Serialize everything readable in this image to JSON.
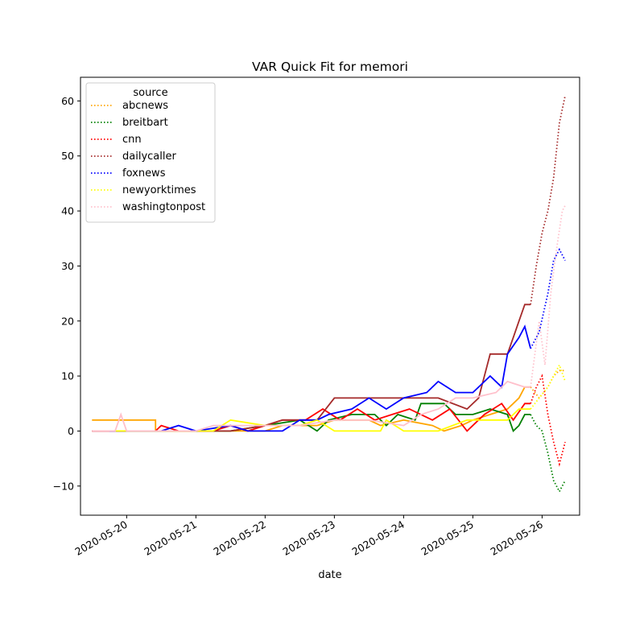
{
  "chart_data": {
    "type": "line",
    "title": "VAR Quick Fit for memori",
    "xlabel": "date",
    "ylabel": "",
    "x_ticks": [
      "2020-05-20",
      "2020-05-21",
      "2020-05-22",
      "2020-05-23",
      "2020-05-24",
      "2020-05-25",
      "2020-05-26"
    ],
    "y_ticks": [
      -10,
      0,
      10,
      20,
      30,
      40,
      50,
      60
    ],
    "xlim": [
      "2020-05-19 08:00",
      "2020-05-26 13:00"
    ],
    "ylim": [
      -15.3,
      64.3
    ],
    "grid": false,
    "legend": {
      "title": "source",
      "placement": "top-left"
    },
    "fit_start": "2020-05-25 20:00",
    "series": [
      {
        "name": "abcnews",
        "color": "#ffa500",
        "observed": [
          [
            "2020-05-19 12:00",
            2
          ],
          [
            "2020-05-20 10:00",
            2
          ],
          [
            "2020-05-20 10:00",
            0
          ],
          [
            "2020-05-22 00:00",
            0
          ],
          [
            "2020-05-22 06:00",
            1
          ],
          [
            "2020-05-22 18:00",
            1
          ],
          [
            "2020-05-23 00:00",
            2
          ],
          [
            "2020-05-23 12:00",
            2
          ],
          [
            "2020-05-23 16:00",
            1
          ],
          [
            "2020-05-24 00:00",
            2
          ],
          [
            "2020-05-24 10:00",
            1
          ],
          [
            "2020-05-24 14:00",
            0
          ],
          [
            "2020-05-24 20:00",
            1
          ],
          [
            "2020-05-25 00:00",
            2
          ],
          [
            "2020-05-25 06:00",
            3
          ],
          [
            "2020-05-25 12:00",
            4
          ],
          [
            "2020-05-25 16:00",
            6
          ],
          [
            "2020-05-25 18:00",
            8
          ],
          [
            "2020-05-25 20:00",
            8
          ]
        ],
        "forecast": [
          [
            "2020-05-25 20:00",
            8
          ],
          [
            "2020-05-25 23:00",
            6
          ],
          [
            "2020-05-26 02:00",
            8
          ],
          [
            "2020-05-26 04:00",
            10
          ],
          [
            "2020-05-26 06:00",
            11
          ],
          [
            "2020-05-26 08:00",
            11
          ]
        ]
      },
      {
        "name": "breitbart",
        "color": "#008000",
        "observed": [
          [
            "2020-05-19 20:00",
            0
          ],
          [
            "2020-05-21 12:00",
            0
          ],
          [
            "2020-05-22 12:00",
            2
          ],
          [
            "2020-05-22 18:00",
            0
          ],
          [
            "2020-05-22 22:00",
            2
          ],
          [
            "2020-05-23 06:00",
            3
          ],
          [
            "2020-05-23 14:00",
            3
          ],
          [
            "2020-05-23 18:00",
            1
          ],
          [
            "2020-05-23 22:00",
            3
          ],
          [
            "2020-05-24 04:00",
            2
          ],
          [
            "2020-05-24 06:00",
            5
          ],
          [
            "2020-05-24 14:00",
            5
          ],
          [
            "2020-05-24 18:00",
            3
          ],
          [
            "2020-05-25 00:00",
            3
          ],
          [
            "2020-05-25 06:00",
            4
          ],
          [
            "2020-05-25 12:00",
            3
          ],
          [
            "2020-05-25 14:00",
            0
          ],
          [
            "2020-05-25 16:00",
            1
          ],
          [
            "2020-05-25 18:00",
            3
          ],
          [
            "2020-05-25 20:00",
            3
          ]
        ],
        "forecast": [
          [
            "2020-05-25 20:00",
            3
          ],
          [
            "2020-05-25 22:00",
            1
          ],
          [
            "2020-05-26 00:00",
            0
          ],
          [
            "2020-05-26 02:00",
            -4
          ],
          [
            "2020-05-26 04:00",
            -9
          ],
          [
            "2020-05-26 06:00",
            -11
          ],
          [
            "2020-05-26 08:00",
            -9
          ]
        ]
      },
      {
        "name": "cnn",
        "color": "#ff0000",
        "observed": [
          [
            "2020-05-19 12:00",
            0
          ],
          [
            "2020-05-20 10:00",
            0
          ],
          [
            "2020-05-20 12:00",
            1
          ],
          [
            "2020-05-20 18:00",
            0
          ],
          [
            "2020-05-21 06:00",
            0
          ],
          [
            "2020-05-21 12:00",
            1
          ],
          [
            "2020-05-21 18:00",
            0
          ],
          [
            "2020-05-22 00:00",
            1
          ],
          [
            "2020-05-22 06:00",
            2
          ],
          [
            "2020-05-22 14:00",
            2
          ],
          [
            "2020-05-22 20:00",
            4
          ],
          [
            "2020-05-23 02:00",
            2
          ],
          [
            "2020-05-23 08:00",
            4
          ],
          [
            "2020-05-23 14:00",
            2
          ],
          [
            "2020-05-23 20:00",
            3
          ],
          [
            "2020-05-24 02:00",
            4
          ],
          [
            "2020-05-24 10:00",
            2
          ],
          [
            "2020-05-24 16:00",
            4
          ],
          [
            "2020-05-24 22:00",
            0
          ],
          [
            "2020-05-25 04:00",
            3
          ],
          [
            "2020-05-25 10:00",
            5
          ],
          [
            "2020-05-25 14:00",
            2
          ],
          [
            "2020-05-25 18:00",
            5
          ],
          [
            "2020-05-25 20:00",
            5
          ]
        ],
        "forecast": [
          [
            "2020-05-25 20:00",
            5
          ],
          [
            "2020-05-25 22:00",
            8
          ],
          [
            "2020-05-26 00:00",
            10
          ],
          [
            "2020-05-26 02:00",
            3
          ],
          [
            "2020-05-26 04:00",
            -2
          ],
          [
            "2020-05-26 06:00",
            -6
          ],
          [
            "2020-05-26 08:00",
            -2
          ]
        ]
      },
      {
        "name": "dailycaller",
        "color": "#a52a2a",
        "observed": [
          [
            "2020-05-19 12:00",
            0
          ],
          [
            "2020-05-21 12:00",
            0
          ],
          [
            "2020-05-22 00:00",
            1
          ],
          [
            "2020-05-22 06:00",
            2
          ],
          [
            "2020-05-22 18:00",
            2
          ],
          [
            "2020-05-23 00:00",
            6
          ],
          [
            "2020-05-23 18:00",
            6
          ],
          [
            "2020-05-24 12:00",
            6
          ],
          [
            "2020-05-24 22:00",
            4
          ],
          [
            "2020-05-25 02:00",
            6
          ],
          [
            "2020-05-25 06:00",
            14
          ],
          [
            "2020-05-25 12:00",
            14
          ],
          [
            "2020-05-25 14:00",
            17
          ],
          [
            "2020-05-25 16:00",
            20
          ],
          [
            "2020-05-25 18:00",
            23
          ],
          [
            "2020-05-25 20:00",
            23
          ]
        ],
        "forecast": [
          [
            "2020-05-25 20:00",
            23
          ],
          [
            "2020-05-25 22:00",
            30
          ],
          [
            "2020-05-26 00:00",
            36
          ],
          [
            "2020-05-26 02:00",
            40
          ],
          [
            "2020-05-26 04:00",
            46
          ],
          [
            "2020-05-26 06:00",
            56
          ],
          [
            "2020-05-26 08:00",
            61
          ]
        ]
      },
      {
        "name": "foxnews",
        "color": "#0000ff",
        "observed": [
          [
            "2020-05-19 18:00",
            0
          ],
          [
            "2020-05-20 12:00",
            0
          ],
          [
            "2020-05-20 18:00",
            1
          ],
          [
            "2020-05-21 00:00",
            0
          ],
          [
            "2020-05-21 12:00",
            1
          ],
          [
            "2020-05-21 18:00",
            0
          ],
          [
            "2020-05-22 06:00",
            0
          ],
          [
            "2020-05-22 12:00",
            2
          ],
          [
            "2020-05-22 18:00",
            2
          ],
          [
            "2020-05-22 22:00",
            3
          ],
          [
            "2020-05-23 06:00",
            4
          ],
          [
            "2020-05-23 12:00",
            6
          ],
          [
            "2020-05-23 18:00",
            4
          ],
          [
            "2020-05-24 00:00",
            6
          ],
          [
            "2020-05-24 08:00",
            7
          ],
          [
            "2020-05-24 12:00",
            9
          ],
          [
            "2020-05-24 18:00",
            7
          ],
          [
            "2020-05-25 00:00",
            7
          ],
          [
            "2020-05-25 06:00",
            10
          ],
          [
            "2020-05-25 10:00",
            8
          ],
          [
            "2020-05-25 12:00",
            14
          ],
          [
            "2020-05-25 16:00",
            17
          ],
          [
            "2020-05-25 18:00",
            19
          ],
          [
            "2020-05-25 20:00",
            15
          ]
        ],
        "forecast": [
          [
            "2020-05-25 20:00",
            15
          ],
          [
            "2020-05-25 23:00",
            18
          ],
          [
            "2020-05-26 02:00",
            25
          ],
          [
            "2020-05-26 04:00",
            31
          ],
          [
            "2020-05-26 06:00",
            33
          ],
          [
            "2020-05-26 08:00",
            31
          ]
        ]
      },
      {
        "name": "newyorktimes",
        "color": "#ffff00",
        "observed": [
          [
            "2020-05-19 20:00",
            0
          ],
          [
            "2020-05-21 06:00",
            0
          ],
          [
            "2020-05-21 12:00",
            2
          ],
          [
            "2020-05-22 00:00",
            1
          ],
          [
            "2020-05-22 12:00",
            1
          ],
          [
            "2020-05-22 18:00",
            2
          ],
          [
            "2020-05-23 00:00",
            0
          ],
          [
            "2020-05-23 16:00",
            0
          ],
          [
            "2020-05-23 18:00",
            2
          ],
          [
            "2020-05-24 00:00",
            0
          ],
          [
            "2020-05-24 12:00",
            0
          ],
          [
            "2020-05-24 22:00",
            2
          ],
          [
            "2020-05-25 12:00",
            2
          ],
          [
            "2020-05-25 16:00",
            4
          ],
          [
            "2020-05-25 20:00",
            4
          ]
        ],
        "forecast": [
          [
            "2020-05-25 20:00",
            4
          ],
          [
            "2020-05-25 23:00",
            6
          ],
          [
            "2020-05-26 02:00",
            8
          ],
          [
            "2020-05-26 04:00",
            10
          ],
          [
            "2020-05-26 06:00",
            12
          ],
          [
            "2020-05-26 08:00",
            9
          ]
        ]
      },
      {
        "name": "washingtonpost",
        "color": "#ffc0cb",
        "observed": [
          [
            "2020-05-19 12:00",
            0
          ],
          [
            "2020-05-19 20:00",
            0
          ],
          [
            "2020-05-19 22:00",
            3
          ],
          [
            "2020-05-20 00:00",
            0
          ],
          [
            "2020-05-21 00:00",
            0
          ],
          [
            "2020-05-21 06:00",
            1
          ],
          [
            "2020-05-22 12:00",
            1
          ],
          [
            "2020-05-23 00:00",
            2
          ],
          [
            "2020-05-23 12:00",
            2
          ],
          [
            "2020-05-24 00:00",
            1
          ],
          [
            "2020-05-24 06:00",
            3
          ],
          [
            "2020-05-24 12:00",
            4
          ],
          [
            "2020-05-24 18:00",
            6
          ],
          [
            "2020-05-25 00:00",
            6
          ],
          [
            "2020-05-25 08:00",
            7
          ],
          [
            "2020-05-25 12:00",
            9
          ],
          [
            "2020-05-25 18:00",
            8
          ],
          [
            "2020-05-25 20:00",
            8
          ]
        ],
        "forecast": [
          [
            "2020-05-25 20:00",
            8
          ],
          [
            "2020-05-25 23:00",
            20
          ],
          [
            "2020-05-26 01:00",
            12
          ],
          [
            "2020-05-26 03:00",
            25
          ],
          [
            "2020-05-26 05:00",
            33
          ],
          [
            "2020-05-26 07:00",
            40
          ],
          [
            "2020-05-26 08:00",
            41
          ]
        ]
      }
    ]
  }
}
